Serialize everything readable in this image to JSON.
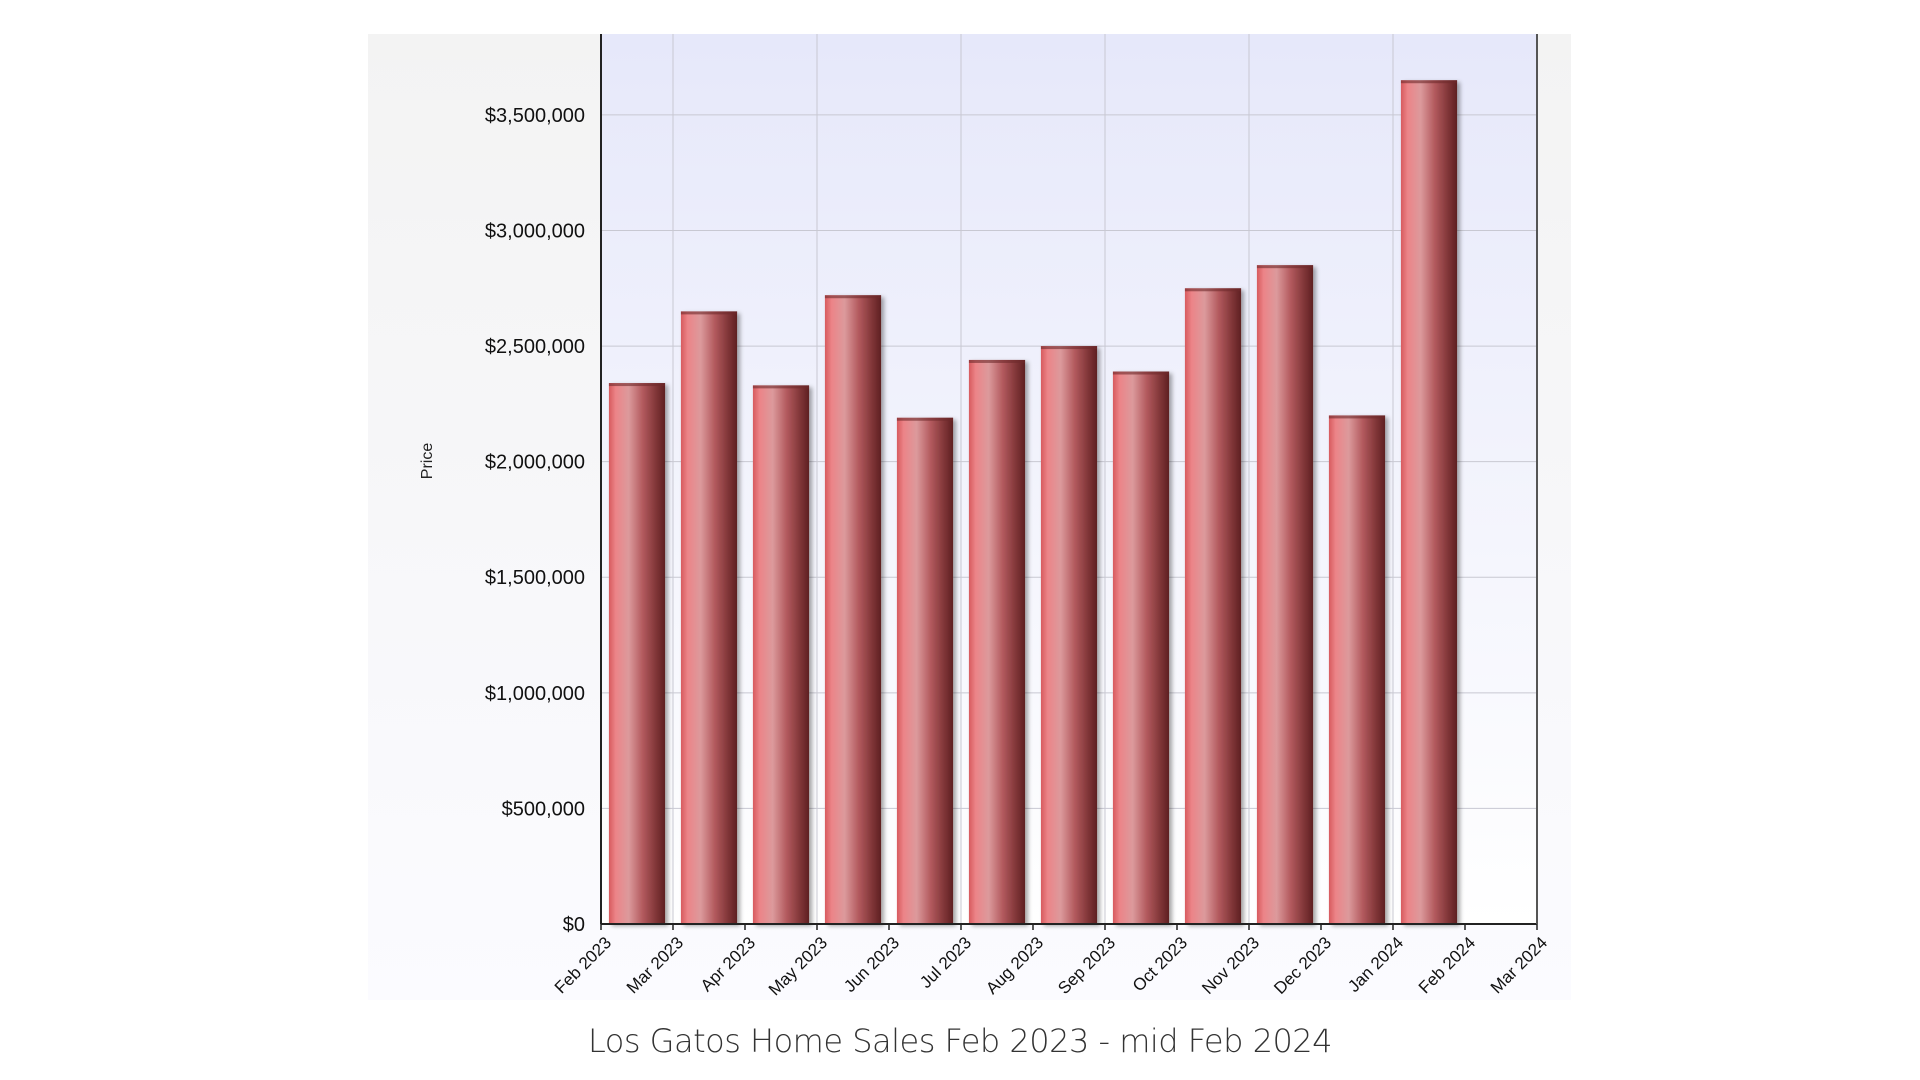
{
  "caption": "Los Gatos Home Sales Feb 2023 - mid Feb 2024",
  "chart_data": {
    "type": "bar",
    "title": "",
    "xlabel": "",
    "ylabel": "Price",
    "ylim": [
      0,
      3850000
    ],
    "yticks": [
      0,
      500000,
      1000000,
      1500000,
      2000000,
      2500000,
      3000000,
      3500000
    ],
    "ytick_labels": [
      "$0",
      "$500,000",
      "$1,000,000",
      "$1,500,000",
      "$2,000,000",
      "$2,500,000",
      "$3,000,000",
      "$3,500,000"
    ],
    "x_tick_labels": [
      "Feb 2023",
      "Mar 2023",
      "Apr 2023",
      "May 2023",
      "Jun 2023",
      "Jul 2023",
      "Aug 2023",
      "Sep 2023",
      "Oct 2023",
      "Nov 2023",
      "Dec 2023",
      "Jan 2024",
      "Feb 2024",
      "Mar 2024"
    ],
    "categories": [
      "Feb 2023",
      "Mar 2023",
      "Apr 2023",
      "May 2023",
      "Jun 2023",
      "Jul 2023",
      "Aug 2023",
      "Sep 2023",
      "Oct 2023",
      "Nov 2023",
      "Dec 2023",
      "Jan 2024"
    ],
    "values": [
      2340000,
      2650000,
      2330000,
      2720000,
      2190000,
      2440000,
      2500000,
      2390000,
      2750000,
      2850000,
      2200000,
      3650000
    ],
    "grid": true,
    "legend": "none",
    "colors": {
      "bar_light": "#e88a8e",
      "bar_mid": "#d96468",
      "bar_dark": "#6e2a2c",
      "plot_bg_top": "#e6e8fa",
      "plot_bg_bottom": "#ffffff",
      "grid": "#c8c8d2"
    }
  }
}
